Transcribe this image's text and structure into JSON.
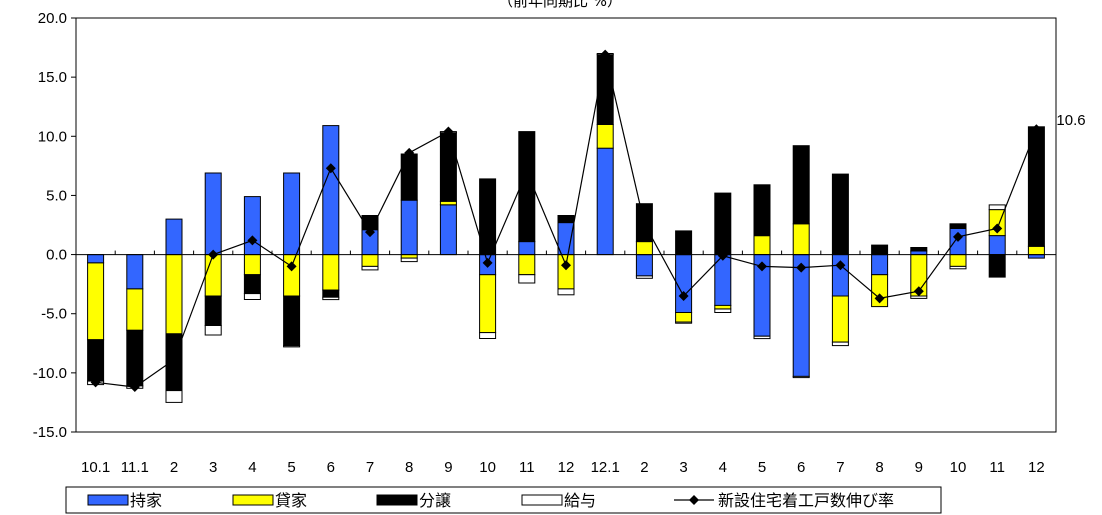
{
  "chart_data": {
    "type": "bar",
    "stacked": true,
    "title": "（前年同期比 %）",
    "ylim": [
      -15,
      20
    ],
    "yticks": [
      "20.0",
      "15.0",
      "10.0",
      "5.0",
      "0.0",
      "-5.0",
      "-10.0",
      "-15.0"
    ],
    "categories": [
      "10.1",
      "11.1",
      "2",
      "3",
      "4",
      "5",
      "6",
      "7",
      "8",
      "9",
      "10",
      "11",
      "12",
      "12.1",
      "2",
      "3",
      "4",
      "5",
      "6",
      "7",
      "8",
      "9",
      "10",
      "11",
      "12"
    ],
    "series": [
      {
        "name": "持家",
        "color": "#3366ff",
        "values": [
          -0.7,
          -2.9,
          3.0,
          6.9,
          4.9,
          6.9,
          10.9,
          2.1,
          4.6,
          4.2,
          -1.7,
          1.1,
          2.7,
          9.0,
          -1.8,
          -4.9,
          -4.3,
          -6.9,
          -10.3,
          -3.5,
          -1.7,
          0.3,
          2.2,
          1.6,
          -0.3
        ]
      },
      {
        "name": "貸家",
        "color": "#ffff00",
        "values": [
          -6.5,
          -3.5,
          -6.7,
          -3.5,
          -1.7,
          -3.5,
          -3.0,
          -1.0,
          -0.3,
          0.3,
          -4.9,
          -1.7,
          -2.9,
          2.0,
          1.1,
          -0.8,
          -0.3,
          1.6,
          2.6,
          -3.9,
          -2.7,
          -3.5,
          -1.0,
          2.2,
          0.7
        ]
      },
      {
        "name": "分譲",
        "color": "#000000",
        "values": [
          -3.5,
          -4.7,
          -4.8,
          -2.5,
          -1.6,
          -4.2,
          -0.6,
          1.2,
          3.9,
          5.8,
          6.4,
          9.3,
          0.6,
          5.9,
          3.2,
          2.0,
          5.2,
          4.3,
          6.6,
          6.8,
          0.8,
          0.3,
          0.4,
          -1.9,
          10.1
        ]
      },
      {
        "name": "給与",
        "color": "#ffffff",
        "values": [
          -0.3,
          -0.2,
          -1.0,
          -0.8,
          -0.5,
          -0.1,
          -0.2,
          -0.3,
          -0.3,
          0.1,
          -0.5,
          -0.7,
          -0.5,
          0.1,
          -0.2,
          -0.1,
          -0.3,
          -0.2,
          -0.1,
          -0.3,
          0.0,
          -0.2,
          -0.2,
          0.4,
          0.0
        ]
      }
    ],
    "line_series": {
      "name": "新設住宅着工戸数伸び率",
      "color": "#000000",
      "values": [
        -10.8,
        -11.2,
        -8.9,
        0.0,
        1.2,
        -1.0,
        7.3,
        1.9,
        8.6,
        10.4,
        -0.7,
        7.0,
        -0.9,
        16.9,
        2.6,
        -3.5,
        -0.1,
        -1.0,
        -1.1,
        -0.9,
        -3.7,
        -3.1,
        1.5,
        2.2,
        10.6
      ]
    },
    "annotations": [
      {
        "category_index": 24,
        "text": "10.6"
      }
    ],
    "legend_position": "bottom",
    "grid": false
  }
}
